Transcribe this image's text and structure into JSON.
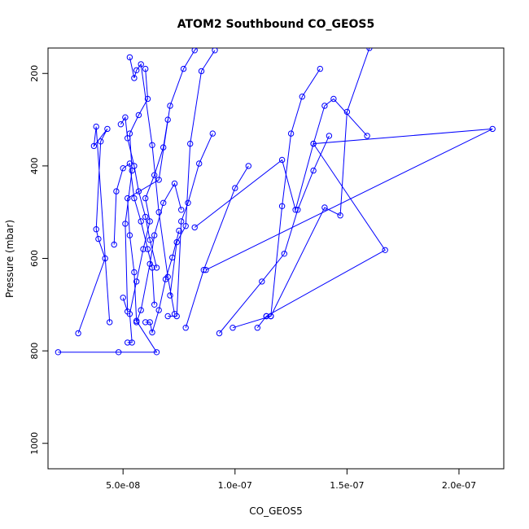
{
  "chart_data": {
    "type": "line",
    "title": "ATOM2 Southbound CO_GEOS5",
    "xlabel": "CO_GEOS5",
    "ylabel": "Pressure (mbar)",
    "xlim": [
      1.65e-08,
      2.2e-07
    ],
    "ylim": [
      1055,
      145
    ],
    "y_reversed": true,
    "x_ticks": [
      5e-08,
      1e-07,
      1.5e-07,
      2e-07
    ],
    "x_tick_labels": [
      "5.0e-08",
      "1.0e-07",
      "1.5e-07",
      "2.0e-07"
    ],
    "y_ticks": [
      200,
      400,
      600,
      800,
      1000
    ],
    "y_tick_labels": [
      "200",
      "400",
      "600",
      "800",
      "1000"
    ],
    "series_color": "#0000ff",
    "grid": false,
    "series": [
      {
        "x": [
          2.1e-08,
          4.8e-08,
          6.5e-08,
          5.6e-08,
          5.5e-08,
          5.3e-08,
          5.2e-08,
          6.6e-08,
          7.1e-08,
          7.7e-08,
          8.2e-08,
          8.5e-08
        ],
        "y": [
          803,
          803,
          803,
          735,
          630,
          550,
          470,
          430,
          270,
          190,
          150,
          130
        ]
      },
      {
        "x": [
          3e-08,
          4.2e-08,
          3.9e-08,
          3.8e-08,
          4e-08,
          4.3e-08,
          3.7e-08,
          3.8e-08,
          4.4e-08
        ],
        "y": [
          762,
          600,
          558,
          537,
          347,
          320,
          357,
          315,
          738
        ]
      },
      {
        "x": [
          4.6e-08,
          4.7e-08,
          5e-08,
          5.3e-08,
          5.5e-08,
          5.8e-08,
          6.1e-08,
          6.3e-08,
          6.4e-08
        ],
        "y": [
          570,
          455,
          405,
          395,
          470,
          520,
          580,
          620,
          700
        ]
      },
      {
        "x": [
          5.2e-08,
          5.4e-08,
          5.3e-08,
          5.6e-08,
          5.9e-08,
          6.2e-08,
          6e-08,
          6.4e-08,
          6.8e-08,
          7e-08
        ],
        "y": [
          782,
          782,
          720,
          650,
          580,
          520,
          470,
          420,
          360,
          300
        ]
      },
      {
        "x": [
          5e-08,
          5.2e-08,
          5.1e-08,
          5.4e-08,
          5.3e-08,
          5.7e-08,
          6.1e-08,
          6e-08
        ],
        "y": [
          685,
          715,
          525,
          410,
          330,
          290,
          255,
          190
        ]
      },
      {
        "x": [
          4.9e-08,
          5.1e-08,
          5.2e-08,
          5.5e-08,
          5.7e-08,
          6e-08,
          6.2e-08,
          6.5e-08
        ],
        "y": [
          310,
          295,
          340,
          400,
          455,
          510,
          560,
          620
        ]
      },
      {
        "x": [
          5.3e-08,
          5.5e-08,
          5.6e-08,
          5.8e-08,
          6.3e-08,
          6.6e-08,
          7e-08,
          7.3e-08
        ],
        "y": [
          165,
          210,
          193,
          180,
          355,
          500,
          640,
          720
        ]
      },
      {
        "x": [
          5.6e-08,
          5.8e-08,
          6.2e-08,
          6.4e-08,
          6.8e-08,
          7.3e-08,
          7.6e-08
        ],
        "y": [
          738,
          712,
          612,
          550,
          480,
          438,
          495
        ]
      },
      {
        "x": [
          6e-08,
          6.2e-08,
          6.3e-08,
          6.6e-08,
          6.9e-08,
          7.2e-08,
          7.5e-08
        ],
        "y": [
          738,
          738,
          760,
          712,
          645,
          598,
          540
        ]
      },
      {
        "x": [
          7e-08,
          7.4e-08,
          7.6e-08,
          7.9e-08,
          8.4e-08,
          9e-08
        ],
        "y": [
          725,
          725,
          520,
          480,
          395,
          330
        ]
      },
      {
        "x": [
          7.8e-08,
          8.6e-08,
          1e-07,
          1.06e-07
        ],
        "y": [
          750,
          625,
          448,
          400
        ]
      },
      {
        "x": [
          7.1e-08,
          7.4e-08,
          7.8e-08,
          8e-08,
          8.5e-08,
          9.1e-08
        ],
        "y": [
          680,
          565,
          530,
          352,
          195,
          150
        ]
      },
      {
        "x": [
          9.3e-08,
          1.12e-07,
          1.22e-07,
          1.28e-07,
          1.35e-07,
          1.42e-07
        ],
        "y": [
          762,
          650,
          590,
          495,
          410,
          335
        ]
      },
      {
        "x": [
          9.9e-08,
          1.16e-07,
          1.21e-07,
          1.25e-07,
          1.3e-07,
          1.38e-07
        ],
        "y": [
          750,
          725,
          487,
          330,
          250,
          190
        ]
      },
      {
        "x": [
          1.1e-07,
          1.14e-07,
          1.16e-07,
          1.4e-07,
          1.47e-07,
          1.5e-07,
          1.6e-07
        ],
        "y": [
          750,
          725,
          725,
          490,
          507,
          283,
          145
        ]
      },
      {
        "x": [
          8.2e-08,
          1.21e-07,
          1.27e-07,
          1.35e-07,
          1.4e-07,
          1.44e-07,
          1.59e-07
        ],
        "y": [
          533,
          387,
          495,
          352,
          270,
          255,
          335
        ]
      },
      {
        "x": [
          8.7e-08,
          2.15e-07,
          1.35e-07,
          1.67e-07,
          1.14e-07
        ],
        "y": [
          625,
          320,
          352,
          582,
          725
        ]
      }
    ]
  }
}
